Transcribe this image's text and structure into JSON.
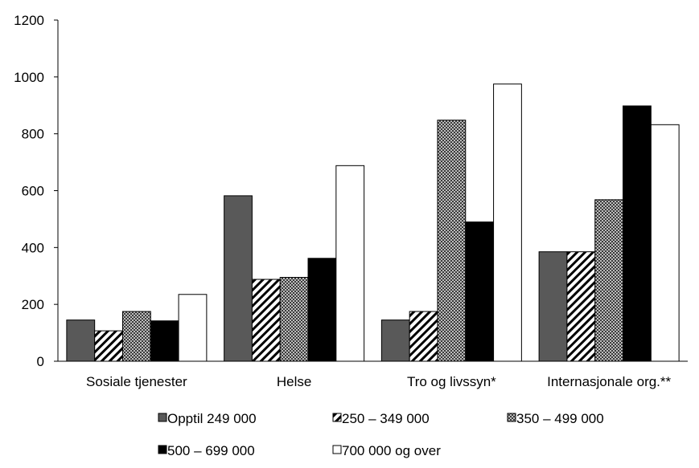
{
  "chart_data": {
    "type": "bar",
    "categories": [
      "Sosiale tjenester",
      "Helse",
      "Tro og livssyn*",
      "Internasjonale org.**"
    ],
    "series": [
      {
        "name": "Opptil 249 000",
        "values": [
          145,
          582,
          145,
          385
        ],
        "color": "#595959",
        "fill_style": "solid"
      },
      {
        "name": "250 – 349 000",
        "values": [
          107,
          288,
          175,
          385
        ],
        "color": "#ffffff",
        "fill_style": "diagonal-hatch"
      },
      {
        "name": "350 – 499 000",
        "values": [
          175,
          295,
          848,
          568
        ],
        "color": "#7f7f7f",
        "fill_style": "checkered"
      },
      {
        "name": "500 – 699 000",
        "values": [
          142,
          362,
          490,
          898
        ],
        "color": "#000000",
        "fill_style": "solid"
      },
      {
        "name": "700 000 og over",
        "values": [
          235,
          688,
          975,
          832
        ],
        "color": "#ffffff",
        "fill_style": "solid"
      }
    ],
    "yticks": [
      "0",
      "200",
      "400",
      "600",
      "800",
      "1000",
      "1200"
    ],
    "ylim": [
      0,
      1200
    ],
    "title": "",
    "xlabel": "",
    "ylabel": "",
    "grid": false,
    "legend_position": "bottom"
  }
}
